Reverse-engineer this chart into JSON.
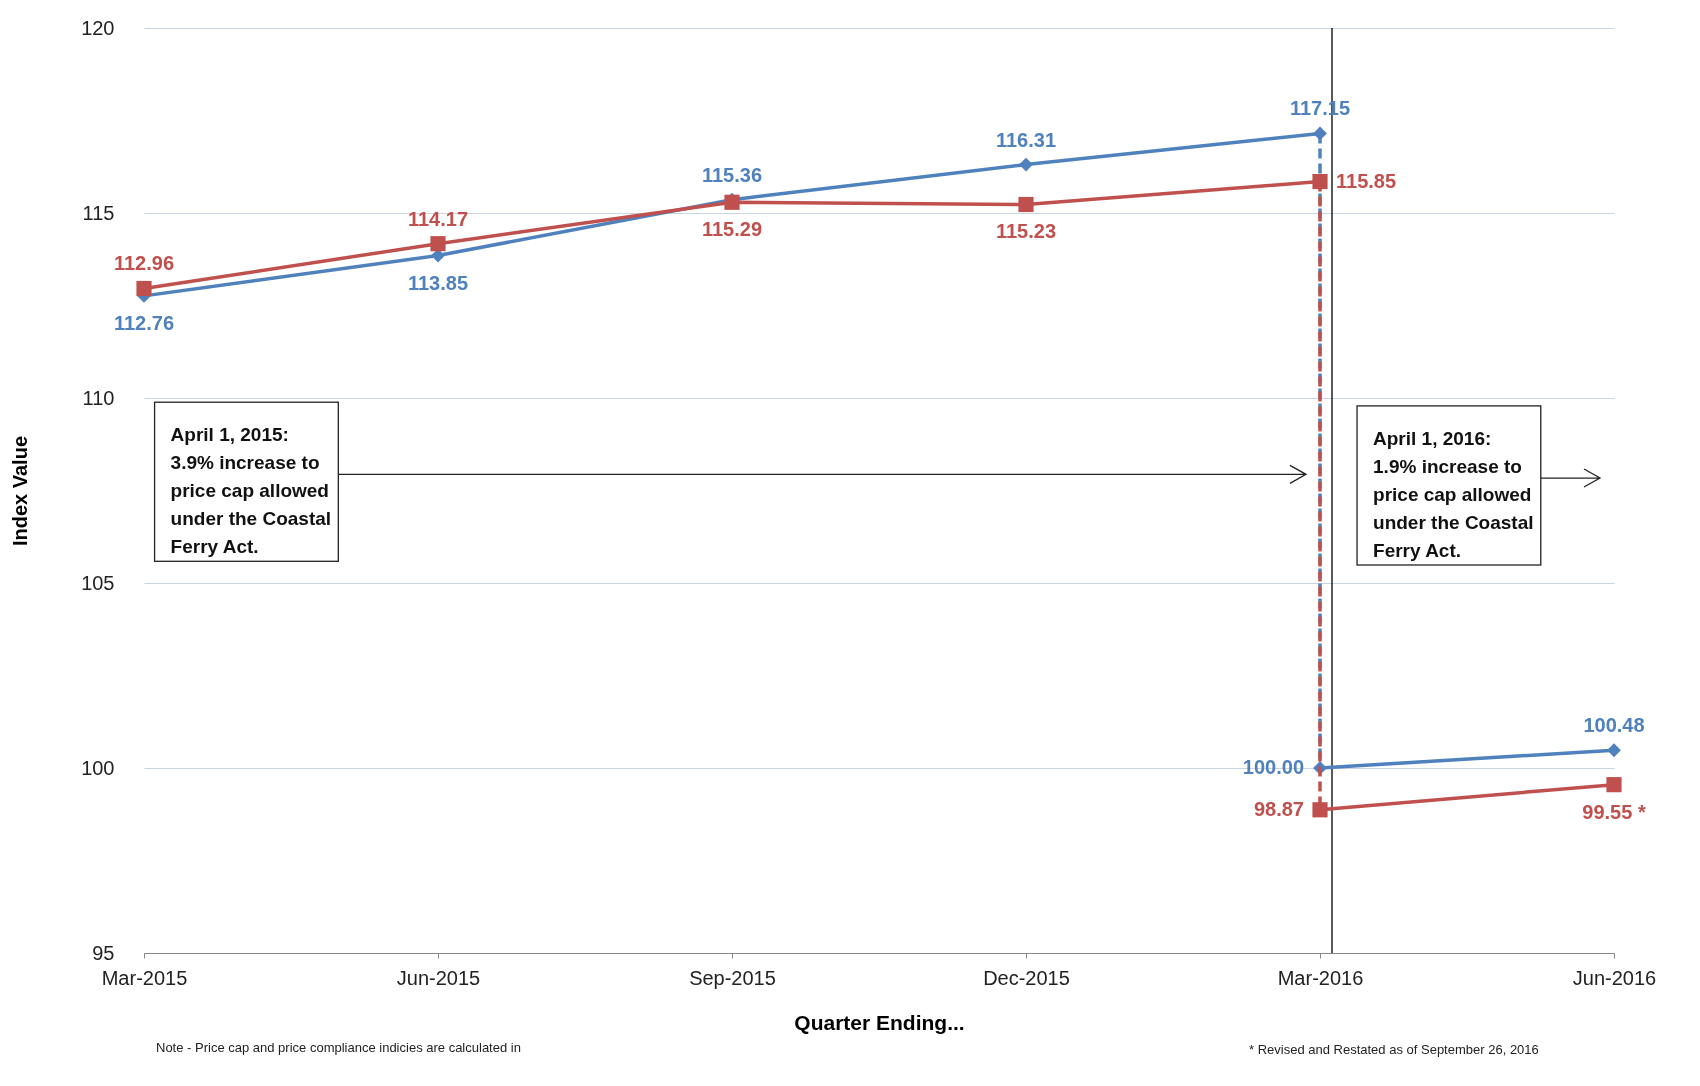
{
  "chart_data": {
    "type": "line",
    "xlabel": "Quarter Ending...",
    "ylabel": "Index Value",
    "categories": [
      "Mar-2015",
      "Jun-2015",
      "Sep-2015",
      "Dec-2015",
      "Mar-2016",
      "Jun-2016"
    ],
    "ylim": [
      95,
      120
    ],
    "yticks": [
      95,
      100,
      105,
      110,
      115,
      120
    ],
    "grid": "y",
    "series": [
      {
        "color": "#4f81bd",
        "marker": "diamond",
        "x": [
          "Mar-2015",
          "Jun-2015",
          "Sep-2015",
          "Dec-2015",
          "Mar-2016"
        ],
        "values": [
          112.76,
          113.85,
          115.36,
          116.31,
          117.15
        ],
        "value_labels": [
          "112.76",
          "113.85",
          "115.36",
          "116.31",
          "117.15"
        ]
      },
      {
        "color": "#4f81bd",
        "line_style": "dashed",
        "x": [
          "Mar-2016",
          "Mar-2016"
        ],
        "values": [
          117.15,
          100.0
        ]
      },
      {
        "color": "#4f81bd",
        "marker": "diamond",
        "x": [
          "Mar-2016",
          "Jun-2016"
        ],
        "values": [
          100.0,
          100.48
        ],
        "value_labels": [
          "100.00",
          "100.48"
        ]
      },
      {
        "color": "#c0504d",
        "marker": "square",
        "x": [
          "Mar-2015",
          "Jun-2015",
          "Sep-2015",
          "Dec-2015",
          "Mar-2016"
        ],
        "values": [
          112.96,
          114.17,
          115.29,
          115.23,
          115.85
        ],
        "value_labels": [
          "112.96",
          "114.17",
          "115.29",
          "115.23",
          "115.85"
        ]
      },
      {
        "color": "#c0504d",
        "line_style": "dashed",
        "x": [
          "Mar-2016",
          "Mar-2016"
        ],
        "values": [
          115.85,
          98.87
        ]
      },
      {
        "color": "#c0504d",
        "marker": "square",
        "x": [
          "Mar-2016",
          "Jun-2016"
        ],
        "values": [
          98.87,
          99.55
        ],
        "value_labels": [
          "98.87",
          "99.55 *"
        ]
      }
    ],
    "ref_lines": [
      {
        "axis": "x",
        "value": "Mar-2016",
        "color": "#000000"
      }
    ],
    "annotations": [
      "April 1, 2015: 3.9% increase to price cap allowed under the Coastal Ferry Act.",
      "April 1, 2016: 1.9% increase to price cap allowed under the Coastal Ferry Act.",
      "Note - Price cap and price compliance indicies are calculated in",
      "* Revised and Restated as of September 26, 2016"
    ]
  }
}
